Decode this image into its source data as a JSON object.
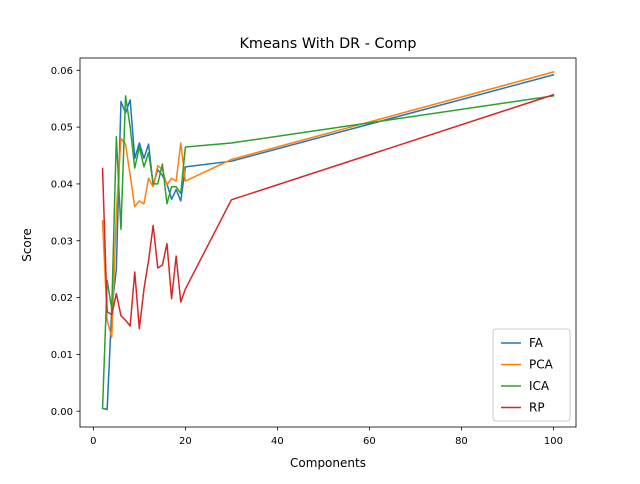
{
  "chart_data": {
    "type": "line",
    "title": "Kmeans With DR - Comp",
    "xlabel": "Components",
    "ylabel": "Score",
    "xlim": [
      -2.9,
      104.9
    ],
    "ylim": [
      -0.00278,
      0.06216
    ],
    "xticks": [
      0,
      20,
      40,
      60,
      80,
      100
    ],
    "xtick_labels": [
      "0",
      "20",
      "40",
      "60",
      "80",
      "100"
    ],
    "yticks": [
      0.0,
      0.01,
      0.02,
      0.03,
      0.04,
      0.05,
      0.06
    ],
    "ytick_labels": [
      "0.00",
      "0.01",
      "0.02",
      "0.03",
      "0.04",
      "0.05",
      "0.06"
    ],
    "grid": false,
    "legend_position": "lower-right",
    "series": [
      {
        "name": "FA",
        "color": "#1f77b4",
        "x": [
          2,
          3,
          4,
          5,
          6,
          7,
          8,
          9,
          10,
          11,
          12,
          13,
          14,
          15,
          16,
          17,
          18,
          19,
          20,
          30,
          100
        ],
        "y": [
          0.0005,
          0.0003,
          0.018,
          0.025,
          0.0545,
          0.0525,
          0.0548,
          0.0445,
          0.0472,
          0.0445,
          0.047,
          0.0398,
          0.0425,
          0.0415,
          0.04,
          0.0373,
          0.039,
          0.037,
          0.043,
          0.044,
          0.0592
        ]
      },
      {
        "name": "PCA",
        "color": "#ff7f0e",
        "x": [
          2,
          3,
          4,
          5,
          6,
          7,
          8,
          9,
          10,
          11,
          12,
          13,
          14,
          15,
          16,
          17,
          18,
          19,
          20,
          30,
          100
        ],
        "y": [
          0.0335,
          0.016,
          0.013,
          0.035,
          0.048,
          0.047,
          0.0415,
          0.036,
          0.037,
          0.0365,
          0.041,
          0.0395,
          0.0432,
          0.0425,
          0.0398,
          0.041,
          0.0405,
          0.0472,
          0.0405,
          0.0443,
          0.0597
        ]
      },
      {
        "name": "ICA",
        "color": "#2ca02c",
        "x": [
          2,
          3,
          4,
          5,
          6,
          7,
          8,
          9,
          10,
          11,
          12,
          13,
          14,
          15,
          16,
          17,
          18,
          19,
          20,
          30,
          100
        ],
        "y": [
          0.0005,
          0.023,
          0.018,
          0.0483,
          0.032,
          0.0555,
          0.05,
          0.0428,
          0.0465,
          0.043,
          0.0455,
          0.04,
          0.04,
          0.0435,
          0.0365,
          0.0395,
          0.0395,
          0.0383,
          0.0465,
          0.0472,
          0.0555
        ]
      },
      {
        "name": "RP",
        "color": "#d62728",
        "x": [
          2,
          3,
          4,
          5,
          6,
          7,
          8,
          9,
          10,
          11,
          12,
          13,
          14,
          15,
          16,
          17,
          18,
          19,
          20,
          30,
          100
        ],
        "y": [
          0.0427,
          0.0175,
          0.017,
          0.0207,
          0.0168,
          0.016,
          0.015,
          0.0245,
          0.0145,
          0.0215,
          0.0265,
          0.0327,
          0.0252,
          0.0257,
          0.0295,
          0.0198,
          0.0273,
          0.0192,
          0.0215,
          0.0372,
          0.0557
        ]
      }
    ]
  }
}
